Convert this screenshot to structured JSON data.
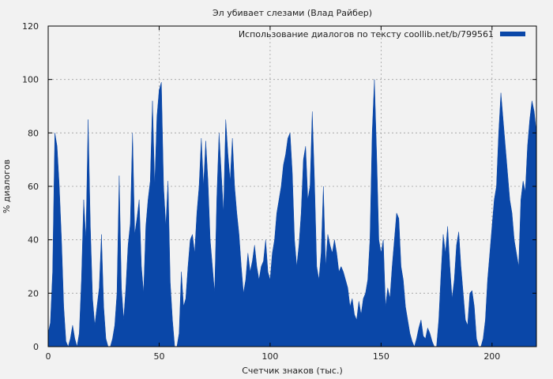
{
  "chart_data": {
    "type": "area",
    "title": "Эл убивает слезами (Влад Райбер)",
    "xlabel": "Счетчик знаков (тыс.)",
    "ylabel": "% диалогов",
    "xlim": [
      0,
      220
    ],
    "ylim": [
      0,
      120
    ],
    "x_ticks": [
      0,
      50,
      100,
      150,
      200
    ],
    "y_ticks": [
      0,
      20,
      40,
      60,
      80,
      100,
      120
    ],
    "grid": true,
    "legend_position": "top-right",
    "series": [
      {
        "name": "Использование диалогов по тексту coollib.net/b/799561",
        "color": "#0a47a8",
        "points": [
          [
            0,
            5
          ],
          [
            1,
            9
          ],
          [
            2,
            28
          ],
          [
            3,
            80
          ],
          [
            4,
            75
          ],
          [
            5,
            60
          ],
          [
            6,
            40
          ],
          [
            7,
            15
          ],
          [
            8,
            2
          ],
          [
            9,
            0
          ],
          [
            10,
            3
          ],
          [
            11,
            8
          ],
          [
            12,
            3
          ],
          [
            13,
            0
          ],
          [
            14,
            5
          ],
          [
            15,
            25
          ],
          [
            16,
            55
          ],
          [
            17,
            40
          ],
          [
            18,
            85
          ],
          [
            19,
            45
          ],
          [
            20,
            18
          ],
          [
            21,
            8
          ],
          [
            22,
            15
          ],
          [
            23,
            22
          ],
          [
            24,
            42
          ],
          [
            25,
            15
          ],
          [
            26,
            3
          ],
          [
            27,
            0
          ],
          [
            28,
            0
          ],
          [
            29,
            3
          ],
          [
            30,
            8
          ],
          [
            31,
            20
          ],
          [
            32,
            64
          ],
          [
            33,
            22
          ],
          [
            34,
            10
          ],
          [
            35,
            22
          ],
          [
            36,
            38
          ],
          [
            37,
            46
          ],
          [
            38,
            80
          ],
          [
            39,
            42
          ],
          [
            40,
            48
          ],
          [
            41,
            55
          ],
          [
            42,
            30
          ],
          [
            43,
            20
          ],
          [
            44,
            45
          ],
          [
            45,
            55
          ],
          [
            46,
            62
          ],
          [
            47,
            92
          ],
          [
            48,
            60
          ],
          [
            49,
            86
          ],
          [
            50,
            96
          ],
          [
            51,
            99
          ],
          [
            52,
            60
          ],
          [
            53,
            45
          ],
          [
            54,
            62
          ],
          [
            55,
            24
          ],
          [
            56,
            10
          ],
          [
            57,
            0
          ],
          [
            58,
            0
          ],
          [
            59,
            5
          ],
          [
            60,
            28
          ],
          [
            61,
            15
          ],
          [
            62,
            18
          ],
          [
            63,
            30
          ],
          [
            64,
            40
          ],
          [
            65,
            42
          ],
          [
            66,
            35
          ],
          [
            67,
            50
          ],
          [
            68,
            60
          ],
          [
            69,
            78
          ],
          [
            70,
            60
          ],
          [
            71,
            77
          ],
          [
            72,
            62
          ],
          [
            73,
            40
          ],
          [
            74,
            30
          ],
          [
            75,
            20
          ],
          [
            76,
            56
          ],
          [
            77,
            80
          ],
          [
            78,
            65
          ],
          [
            79,
            50
          ],
          [
            80,
            85
          ],
          [
            81,
            72
          ],
          [
            82,
            62
          ],
          [
            83,
            78
          ],
          [
            84,
            60
          ],
          [
            85,
            50
          ],
          [
            86,
            42
          ],
          [
            87,
            30
          ],
          [
            88,
            20
          ],
          [
            89,
            25
          ],
          [
            90,
            35
          ],
          [
            91,
            28
          ],
          [
            92,
            32
          ],
          [
            93,
            38
          ],
          [
            94,
            30
          ],
          [
            95,
            25
          ],
          [
            96,
            30
          ],
          [
            97,
            32
          ],
          [
            98,
            40
          ],
          [
            99,
            28
          ],
          [
            100,
            25
          ],
          [
            101,
            35
          ],
          [
            102,
            40
          ],
          [
            103,
            50
          ],
          [
            104,
            55
          ],
          [
            105,
            60
          ],
          [
            106,
            68
          ],
          [
            107,
            72
          ],
          [
            108,
            78
          ],
          [
            109,
            80
          ],
          [
            110,
            65
          ],
          [
            111,
            40
          ],
          [
            112,
            30
          ],
          [
            113,
            38
          ],
          [
            114,
            50
          ],
          [
            115,
            70
          ],
          [
            116,
            75
          ],
          [
            117,
            55
          ],
          [
            118,
            60
          ],
          [
            119,
            88
          ],
          [
            120,
            62
          ],
          [
            121,
            30
          ],
          [
            122,
            25
          ],
          [
            123,
            35
          ],
          [
            124,
            60
          ],
          [
            125,
            30
          ],
          [
            126,
            42
          ],
          [
            127,
            38
          ],
          [
            128,
            35
          ],
          [
            129,
            40
          ],
          [
            130,
            35
          ],
          [
            131,
            28
          ],
          [
            132,
            30
          ],
          [
            133,
            28
          ],
          [
            134,
            25
          ],
          [
            135,
            22
          ],
          [
            136,
            15
          ],
          [
            137,
            18
          ],
          [
            138,
            12
          ],
          [
            139,
            10
          ],
          [
            140,
            17
          ],
          [
            141,
            12
          ],
          [
            142,
            18
          ],
          [
            143,
            20
          ],
          [
            144,
            25
          ],
          [
            145,
            40
          ],
          [
            146,
            80
          ],
          [
            147,
            100
          ],
          [
            148,
            72
          ],
          [
            149,
            40
          ],
          [
            150,
            35
          ],
          [
            151,
            40
          ],
          [
            152,
            15
          ],
          [
            153,
            22
          ],
          [
            154,
            18
          ],
          [
            155,
            30
          ],
          [
            156,
            40
          ],
          [
            157,
            50
          ],
          [
            158,
            48
          ],
          [
            159,
            30
          ],
          [
            160,
            25
          ],
          [
            161,
            15
          ],
          [
            162,
            10
          ],
          [
            163,
            5
          ],
          [
            164,
            2
          ],
          [
            165,
            0
          ],
          [
            166,
            3
          ],
          [
            167,
            7
          ],
          [
            168,
            10
          ],
          [
            169,
            4
          ],
          [
            170,
            3
          ],
          [
            171,
            7
          ],
          [
            172,
            5
          ],
          [
            173,
            2
          ],
          [
            174,
            0
          ],
          [
            175,
            0
          ],
          [
            176,
            10
          ],
          [
            177,
            27
          ],
          [
            178,
            42
          ],
          [
            179,
            35
          ],
          [
            180,
            45
          ],
          [
            181,
            30
          ],
          [
            182,
            18
          ],
          [
            183,
            25
          ],
          [
            184,
            38
          ],
          [
            185,
            43
          ],
          [
            186,
            30
          ],
          [
            187,
            20
          ],
          [
            188,
            10
          ],
          [
            189,
            8
          ],
          [
            190,
            20
          ],
          [
            191,
            21
          ],
          [
            192,
            15
          ],
          [
            193,
            3
          ],
          [
            194,
            0
          ],
          [
            195,
            0
          ],
          [
            196,
            3
          ],
          [
            197,
            10
          ],
          [
            198,
            25
          ],
          [
            199,
            35
          ],
          [
            200,
            45
          ],
          [
            201,
            55
          ],
          [
            202,
            60
          ],
          [
            203,
            80
          ],
          [
            204,
            95
          ],
          [
            205,
            85
          ],
          [
            206,
            75
          ],
          [
            207,
            65
          ],
          [
            208,
            55
          ],
          [
            209,
            50
          ],
          [
            210,
            40
          ],
          [
            211,
            35
          ],
          [
            212,
            30
          ],
          [
            213,
            55
          ],
          [
            214,
            62
          ],
          [
            215,
            58
          ],
          [
            216,
            75
          ],
          [
            217,
            85
          ],
          [
            218,
            92
          ],
          [
            219,
            88
          ],
          [
            220,
            80
          ]
        ]
      }
    ]
  }
}
